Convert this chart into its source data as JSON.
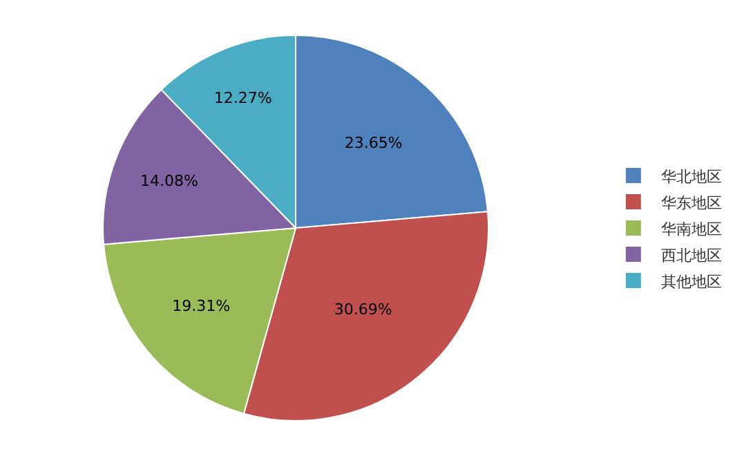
{
  "chart_data": {
    "type": "pie",
    "categories": [
      "华北地区",
      "华东地区",
      "华南地区",
      "西北地区",
      "其他地区"
    ],
    "values": [
      23.65,
      30.69,
      19.31,
      14.08,
      12.27
    ],
    "value_labels": [
      "23.65%",
      "30.69%",
      "19.31%",
      "14.08%",
      "12.27%"
    ],
    "colors": [
      "#4f81bd",
      "#c0504d",
      "#9bbb59",
      "#8064a2",
      "#4bacc6"
    ],
    "legend": "right"
  }
}
